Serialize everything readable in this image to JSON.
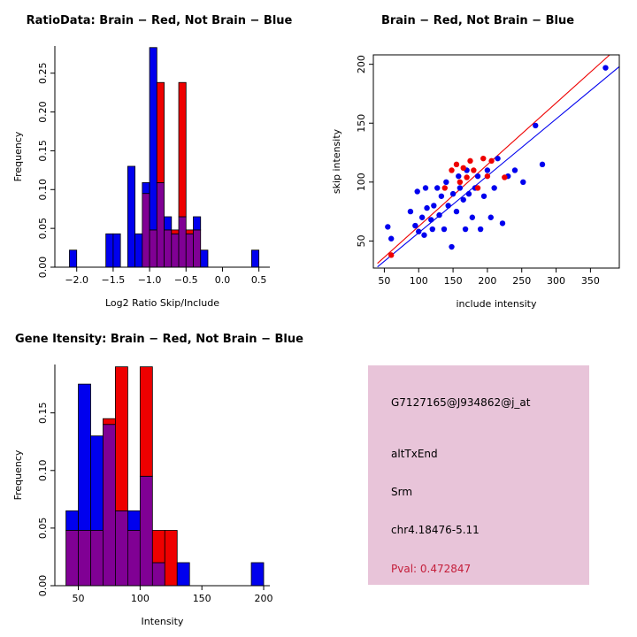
{
  "colors": {
    "blue": "#0000EE",
    "red": "#EE0000",
    "overlap": "#800094",
    "info_bg": "#E8C4D9",
    "pval": "#C41E3A"
  },
  "legend_note": "Brain = red, Not Brain = blue",
  "chart_data": [
    {
      "id": "ratio-histogram",
      "type": "bar",
      "subtype": "overlaid-histogram",
      "title": "RatioData: Brain − Red, Not Brain − Blue",
      "xlabel": "Log2 Ratio Skip/Include",
      "ylabel": "Frequency",
      "xlim": [
        -2.3,
        0.65
      ],
      "ylim": [
        0,
        0.285
      ],
      "xticks": [
        -2.0,
        -1.5,
        -1.0,
        -0.5,
        0.0,
        0.5
      ],
      "xtick_labels": [
        "−2.0",
        "−1.5",
        "−1.0",
        "−0.5",
        "0.0",
        "0.5"
      ],
      "yticks": [
        0,
        0.05,
        0.1,
        0.15,
        0.2,
        0.25
      ],
      "ytick_labels": [
        "0.00",
        "0.05",
        "0.10",
        "0.15",
        "0.20",
        "0.25"
      ],
      "bins_start": -2.1,
      "bin_width": 0.1,
      "grid": false,
      "series": [
        {
          "name": "Not Brain",
          "color_key": "blue",
          "values": [
            0.022,
            0,
            0,
            0,
            0,
            0.043,
            0.043,
            0,
            0.13,
            0.043,
            0.109,
            0.283,
            0.109,
            0.065,
            0.043,
            0.065,
            0.043,
            0.065,
            0.022,
            0,
            0,
            0,
            0,
            0,
            0,
            0.022
          ]
        },
        {
          "name": "Brain",
          "color_key": "red",
          "values": [
            0,
            0,
            0,
            0,
            0,
            0,
            0,
            0,
            0,
            0,
            0.095,
            0.048,
            0.238,
            0.048,
            0.048,
            0.238,
            0.048,
            0.048,
            0,
            0,
            0,
            0,
            0,
            0,
            0,
            0
          ]
        }
      ]
    },
    {
      "id": "intensity-scatter",
      "type": "scatter",
      "title": "Brain − Red, Not Brain − Blue",
      "xlabel": "include intensity",
      "ylabel": "skip intensity",
      "xlim": [
        34,
        392
      ],
      "ylim": [
        27,
        208
      ],
      "xticks": [
        50,
        100,
        150,
        200,
        250,
        300,
        350
      ],
      "xtick_labels": [
        "50",
        "100",
        "150",
        "200",
        "250",
        "300",
        "350"
      ],
      "yticks": [
        50,
        100,
        150,
        200
      ],
      "ytick_labels": [
        "50",
        "100",
        "150",
        "200"
      ],
      "grid": false,
      "series": [
        {
          "name": "Not Brain",
          "color_key": "blue",
          "points": [
            [
              55,
              62
            ],
            [
              60,
              52
            ],
            [
              88,
              75
            ],
            [
              95,
              63
            ],
            [
              98,
              92
            ],
            [
              100,
              58
            ],
            [
              105,
              70
            ],
            [
              108,
              55
            ],
            [
              110,
              95
            ],
            [
              112,
              78
            ],
            [
              118,
              68
            ],
            [
              120,
              60
            ],
            [
              122,
              80
            ],
            [
              127,
              95
            ],
            [
              130,
              72
            ],
            [
              133,
              88
            ],
            [
              137,
              60
            ],
            [
              140,
              100
            ],
            [
              143,
              80
            ],
            [
              148,
              45
            ],
            [
              150,
              90
            ],
            [
              155,
              75
            ],
            [
              158,
              105
            ],
            [
              160,
              95
            ],
            [
              165,
              85
            ],
            [
              168,
              60
            ],
            [
              170,
              110
            ],
            [
              173,
              90
            ],
            [
              178,
              70
            ],
            [
              182,
              95
            ],
            [
              186,
              105
            ],
            [
              190,
              60
            ],
            [
              195,
              88
            ],
            [
              200,
              110
            ],
            [
              205,
              70
            ],
            [
              210,
              95
            ],
            [
              215,
              120
            ],
            [
              222,
              65
            ],
            [
              230,
              105
            ],
            [
              240,
              110
            ],
            [
              252,
              100
            ],
            [
              270,
              148
            ],
            [
              280,
              115
            ],
            [
              372,
              197
            ]
          ]
        },
        {
          "name": "Brain",
          "color_key": "red",
          "points": [
            [
              60,
              38
            ],
            [
              138,
              95
            ],
            [
              148,
              110
            ],
            [
              155,
              115
            ],
            [
              160,
              100
            ],
            [
              165,
              112
            ],
            [
              170,
              104
            ],
            [
              175,
              118
            ],
            [
              180,
              110
            ],
            [
              186,
              95
            ],
            [
              194,
              120
            ],
            [
              200,
              105
            ],
            [
              206,
              118
            ],
            [
              225,
              104
            ]
          ]
        }
      ],
      "lines": [
        {
          "name": "brain-fit",
          "color_key": "red",
          "from": [
            40,
            31
          ],
          "to": [
            378,
            208
          ]
        },
        {
          "name": "notbrain-fit",
          "color_key": "blue",
          "from": [
            40,
            28
          ],
          "to": [
            392,
            198
          ]
        }
      ]
    },
    {
      "id": "gene-intensity-histogram",
      "type": "bar",
      "subtype": "overlaid-histogram",
      "title": "Gene Itensity: Brain − Red, Not Brain − Blue",
      "xlabel": "Intensity",
      "ylabel": "Frequency",
      "xlim": [
        31,
        205
      ],
      "ylim": [
        0,
        0.192
      ],
      "xticks": [
        50,
        100,
        150,
        200
      ],
      "xtick_labels": [
        "50",
        "100",
        "150",
        "200"
      ],
      "yticks": [
        0,
        0.05,
        0.1,
        0.15
      ],
      "ytick_labels": [
        "0.00",
        "0.05",
        "0.10",
        "0.15"
      ],
      "bins_start": 40,
      "bin_width": 10,
      "grid": false,
      "series": [
        {
          "name": "Not Brain",
          "color_key": "blue",
          "values": [
            0.065,
            0.175,
            0.13,
            0.14,
            0.065,
            0.065,
            0.095,
            0.02,
            0,
            0.02,
            0,
            0,
            0,
            0,
            0,
            0.02
          ]
        },
        {
          "name": "Brain",
          "color_key": "red",
          "values": [
            0.048,
            0.048,
            0.048,
            0.145,
            0.19,
            0.048,
            0.19,
            0.048,
            0.048,
            0,
            0,
            0,
            0,
            0,
            0,
            0
          ]
        }
      ]
    }
  ],
  "info_panel": {
    "bg": "#E8C4D9",
    "lines": [
      {
        "name": "probe-id",
        "text": "G7127165@J934862@j_at",
        "color": "#000000"
      },
      {
        "name": "splice-event-type",
        "text": "altTxEnd",
        "color": "#000000"
      },
      {
        "name": "gene-symbol",
        "text": "Srm",
        "color": "#000000"
      },
      {
        "name": "locus",
        "text": "chr4.18476-5.11",
        "color": "#000000"
      },
      {
        "name": "pval",
        "text": "Pval: 0.472847",
        "color": "#C41E3A"
      }
    ]
  }
}
